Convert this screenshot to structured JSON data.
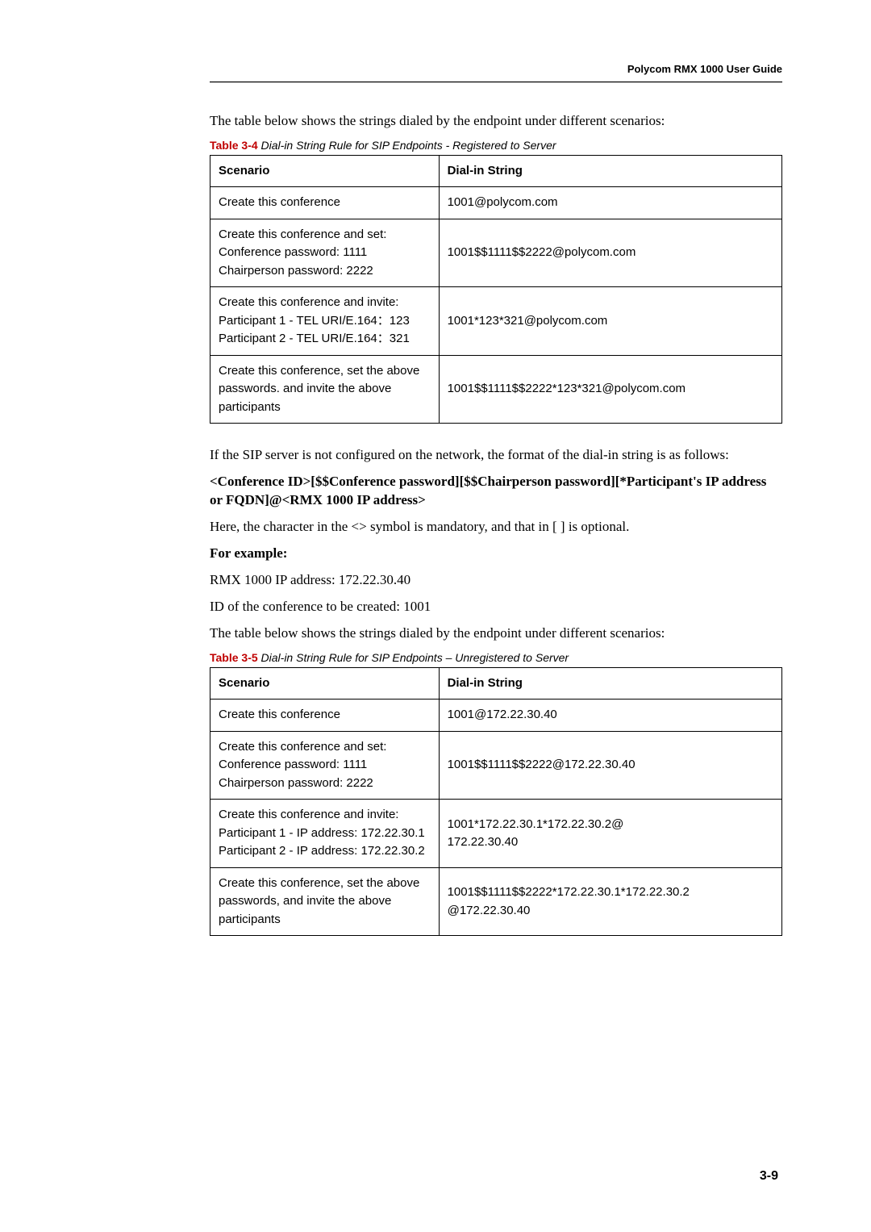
{
  "header": {
    "title": "Polycom RMX 1000 User Guide"
  },
  "intro1": "The table below shows the strings dialed by the endpoint under different scenarios:",
  "table34": {
    "caption_num": "Table 3-4",
    "caption_text": " Dial-in String Rule for SIP Endpoints - Registered to Server",
    "col1": "Scenario",
    "col2": "Dial-in String",
    "rows": [
      {
        "scenario": "Create this conference",
        "dial": "1001@polycom.com"
      },
      {
        "scenario": "Create this conference and set:\nConference password: 1111\nChairperson password: 2222",
        "dial": "1001$$1111$$2222@polycom.com"
      },
      {
        "scenario": "Create this conference and invite:\nParticipant 1 - TEL URI/E.164：123\nParticipant 2 - TEL URI/E.164：321",
        "dial": "1001*123*321@polycom.com"
      },
      {
        "scenario": "Create this conference, set the above passwords. and invite the above participants",
        "dial": "1001$$1111$$2222*123*321@polycom.com"
      }
    ]
  },
  "para2": "If the SIP server is not configured on the network, the format of the dial-in string is as follows:",
  "format_bold": "<Conference ID>[$$Conference password][$$Chairperson password][*Participant's IP address or FQDN]@<RMX 1000 IP address>",
  "para3": "Here, the character in the <> symbol is mandatory, and that in [ ] is optional.",
  "for_example": "For example:",
  "para4": "RMX 1000 IP address: 172.22.30.40",
  "para5": "ID of the conference to be created: 1001",
  "para6": "The table below shows the strings dialed by the endpoint under different scenarios:",
  "table35": {
    "caption_num": "Table 3-5",
    "caption_text": " Dial-in String Rule for SIP Endpoints – Unregistered to Server",
    "col1": "Scenario",
    "col2": "Dial-in String",
    "rows": [
      {
        "scenario": "Create this conference",
        "dial": "1001@172.22.30.40"
      },
      {
        "scenario": "Create this conference and set:\nConference password: 1111\nChairperson password: 2222",
        "dial": "1001$$1111$$2222@172.22.30.40"
      },
      {
        "scenario": "Create this conference and invite:\nParticipant 1 - IP address: 172.22.30.1\nParticipant 2 - IP address: 172.22.30.2",
        "dial": "1001*172.22.30.1*172.22.30.2@\n172.22.30.40"
      },
      {
        "scenario": "Create this conference, set the above passwords, and invite the above participants",
        "dial": "1001$$1111$$2222*172.22.30.1*172.22.30.2\n@172.22.30.40"
      }
    ]
  },
  "page_number": "3-9"
}
